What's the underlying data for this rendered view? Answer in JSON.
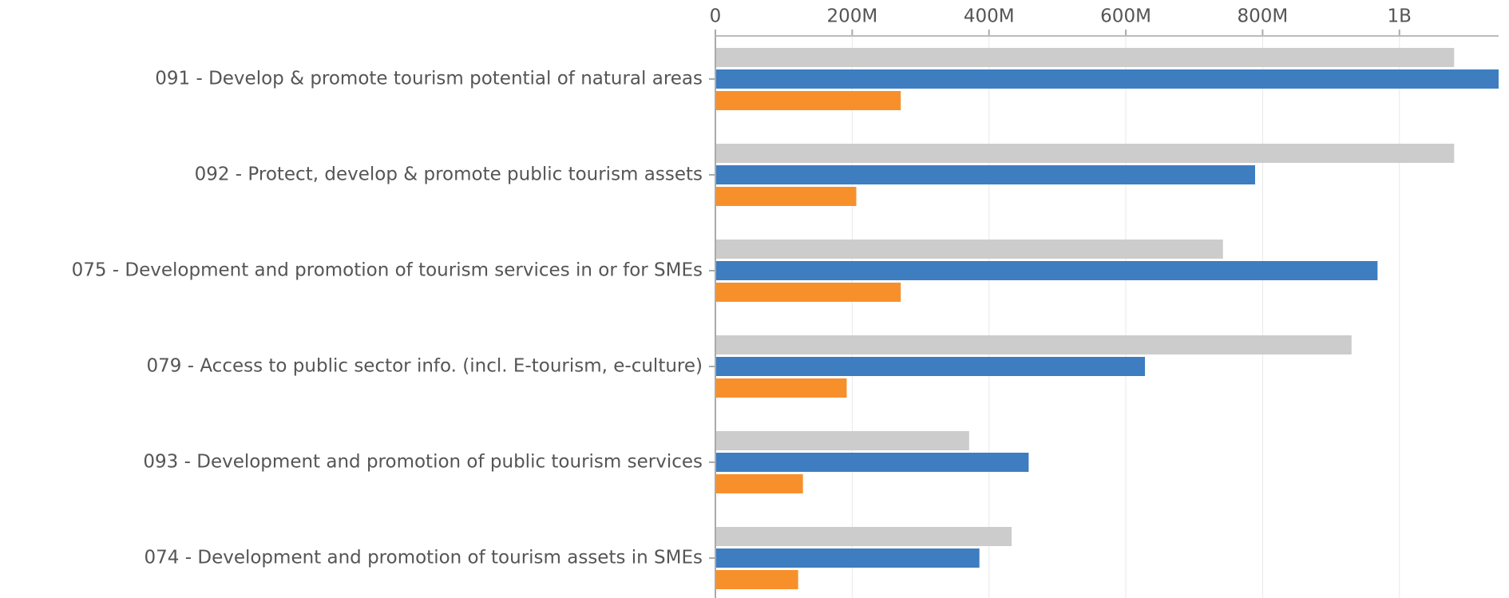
{
  "chart_data": {
    "type": "hbar",
    "categories": [
      "091 - Develop & promote tourism potential of natural areas",
      "092 - Protect, develop & promote public tourism assets",
      "075 - Development and promotion of tourism services in or for SMEs",
      "079 - Access to public sector info. (incl. E-tourism, e-culture)",
      "093 - Development and promotion of public tourism services",
      "074 - Development and promotion of tourism assets in SMEs"
    ],
    "series": [
      {
        "color": "#cccccc",
        "values": [
          1080000000,
          1080000000,
          742000000,
          930000000,
          371000000,
          433000000
        ]
      },
      {
        "color": "#3d7dc0",
        "values": [
          1145000000,
          789000000,
          968000000,
          628000000,
          458000000,
          386000000
        ]
      },
      {
        "color": "#f7902b",
        "values": [
          271000000,
          206000000,
          271000000,
          192000000,
          128000000,
          121000000
        ]
      }
    ],
    "xlim": [
      0,
      1145000000
    ],
    "xticks": [
      {
        "value": 0,
        "label": "0"
      },
      {
        "value": 200000000,
        "label": "200M"
      },
      {
        "value": 400000000,
        "label": "400M"
      },
      {
        "value": 600000000,
        "label": "600M"
      },
      {
        "value": 800000000,
        "label": "800M"
      },
      {
        "value": 1000000000,
        "label": "1B"
      }
    ],
    "grid": true
  }
}
